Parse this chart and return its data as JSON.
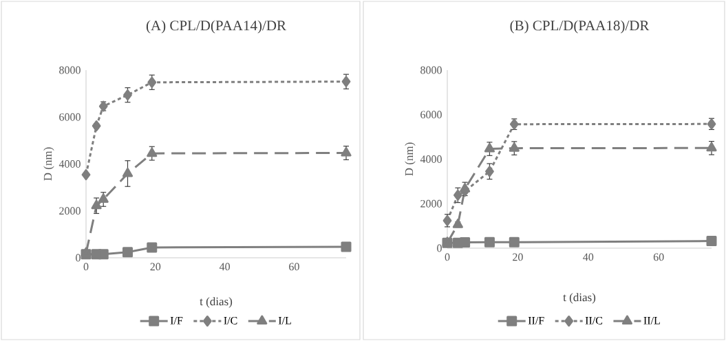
{
  "chart_data": [
    {
      "type": "line",
      "title": "(A) CPL/D(PAA14)/DR",
      "xlabel": "t (dias)",
      "ylabel": "D (nm)",
      "x": [
        0,
        3,
        5,
        12,
        19,
        75
      ],
      "xlim": [
        0,
        75
      ],
      "xticks": [
        0,
        20,
        40,
        60
      ],
      "ylim": [
        0,
        8000
      ],
      "yticks": [
        0,
        2000,
        4000,
        6000,
        8000
      ],
      "grid": false,
      "legend": "bottom",
      "series": [
        {
          "name": "I/F",
          "color": "#7f7f7f",
          "marker": "square",
          "line_style": "solid",
          "values": [
            150,
            150,
            150,
            240,
            440,
            470
          ]
        },
        {
          "name": "I/C",
          "color": "#7f7f7f",
          "marker": "diamond",
          "line_style": "dotted",
          "values": [
            3540,
            5620,
            6460,
            6940,
            7480,
            7510
          ],
          "errors": [
            null,
            100,
            190,
            310,
            310,
            310
          ]
        },
        {
          "name": "I/L",
          "color": "#7f7f7f",
          "marker": "triangle",
          "line_style": "dashed",
          "values": [
            200,
            2220,
            2490,
            3590,
            4450,
            4470
          ],
          "errors": [
            null,
            330,
            300,
            550,
            290,
            290
          ]
        }
      ]
    },
    {
      "type": "line",
      "title": "(B) CPL/D(PAA18)/DR",
      "xlabel": "t (dias)",
      "ylabel": "D (nm)",
      "x": [
        0,
        3,
        5,
        12,
        19,
        75
      ],
      "xlim": [
        0,
        75
      ],
      "xticks": [
        0,
        20,
        40,
        60
      ],
      "ylim": [
        0,
        8000
      ],
      "yticks": [
        0,
        2000,
        4000,
        6000,
        8000
      ],
      "grid": false,
      "legend": "bottom",
      "series": [
        {
          "name": "II/F",
          "color": "#7f7f7f",
          "marker": "square",
          "line_style": "solid",
          "values": [
            240,
            240,
            260,
            270,
            270,
            320
          ]
        },
        {
          "name": "II/C",
          "color": "#7f7f7f",
          "marker": "diamond",
          "line_style": "dotted",
          "values": [
            1240,
            2380,
            2560,
            3450,
            5570,
            5580
          ],
          "errors": [
            280,
            330,
            null,
            350,
            240,
            250
          ]
        },
        {
          "name": "II/L",
          "color": "#7f7f7f",
          "marker": "triangle",
          "line_style": "dashed",
          "values": [
            250,
            1060,
            2660,
            4460,
            4490,
            4500
          ],
          "errors": [
            null,
            120,
            300,
            300,
            300,
            300
          ]
        }
      ]
    }
  ]
}
